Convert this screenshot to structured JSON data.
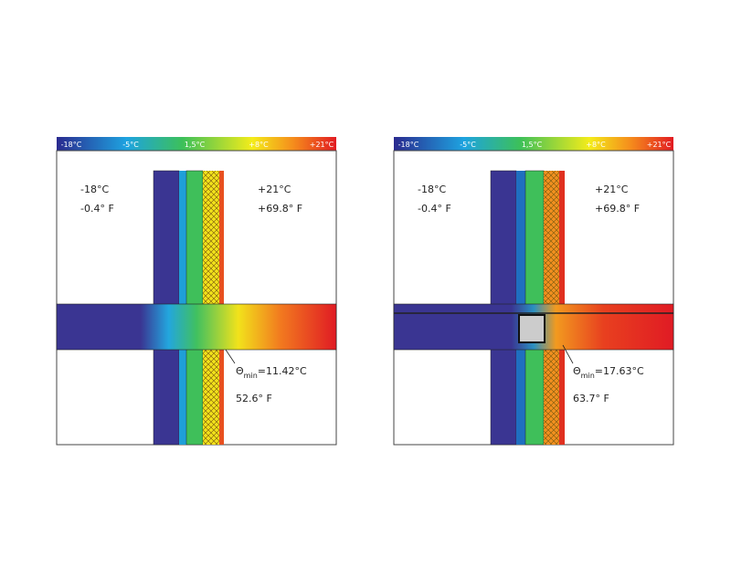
{
  "panels": [
    {
      "scale": [
        "-18°C",
        "-5°C",
        "1,5°C",
        "+8°C",
        "+21°C"
      ],
      "outside": {
        "celsius": "-18°C",
        "fahrenheit": "-0.4° F"
      },
      "inside": {
        "celsius": "+21°C",
        "fahrenheit": "+69.8° F"
      },
      "theta": {
        "symbol": "Θ",
        "subscript": "min",
        "value": "=11.42°C"
      },
      "theta_fahrenheit": "52.6° F"
    },
    {
      "scale": [
        "-18°C",
        "-5°C",
        "1,5°C",
        "+8°C",
        "+21°C"
      ],
      "outside": {
        "celsius": "-18°C",
        "fahrenheit": "-0.4° F"
      },
      "inside": {
        "celsius": "+21°C",
        "fahrenheit": "+69.8° F"
      },
      "theta": {
        "symbol": "Θ",
        "subscript": "min",
        "value": "=17.63°C"
      },
      "theta_fahrenheit": "63.7° F"
    }
  ]
}
